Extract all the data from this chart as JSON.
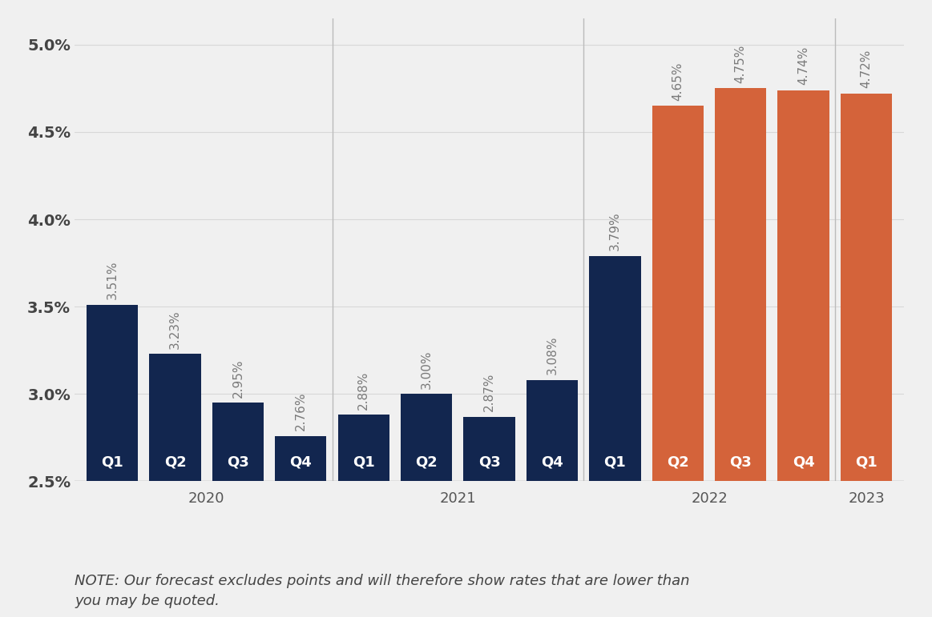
{
  "bars": [
    {
      "label": "Q1",
      "year": "2020",
      "value": 3.51,
      "color": "#12264F"
    },
    {
      "label": "Q2",
      "year": "2020",
      "value": 3.23,
      "color": "#12264F"
    },
    {
      "label": "Q3",
      "year": "2020",
      "value": 2.95,
      "color": "#12264F"
    },
    {
      "label": "Q4",
      "year": "2020",
      "value": 2.76,
      "color": "#12264F"
    },
    {
      "label": "Q1",
      "year": "2021",
      "value": 2.88,
      "color": "#12264F"
    },
    {
      "label": "Q2",
      "year": "2021",
      "value": 3.0,
      "color": "#12264F"
    },
    {
      "label": "Q3",
      "year": "2021",
      "value": 2.87,
      "color": "#12264F"
    },
    {
      "label": "Q4",
      "year": "2021",
      "value": 3.08,
      "color": "#12264F"
    },
    {
      "label": "Q1",
      "year": "2022",
      "value": 3.79,
      "color": "#12264F"
    },
    {
      "label": "Q2",
      "year": "2022",
      "value": 4.65,
      "color": "#D4633A"
    },
    {
      "label": "Q3",
      "year": "2022",
      "value": 4.75,
      "color": "#D4633A"
    },
    {
      "label": "Q4",
      "year": "2022",
      "value": 4.74,
      "color": "#D4633A"
    },
    {
      "label": "Q1",
      "year": "2023",
      "value": 4.72,
      "color": "#D4633A"
    }
  ],
  "ylim": [
    2.5,
    5.15
  ],
  "yticks": [
    2.5,
    3.0,
    3.5,
    4.0,
    4.5,
    5.0
  ],
  "ytick_labels": [
    "2.5%",
    "3.0%",
    "3.5%",
    "4.0%",
    "4.5%",
    "5.0%"
  ],
  "note": "NOTE: Our forecast excludes points and will therefore show rates that are lower than\nyou may be quoted.",
  "background_color": "#f0f0f0",
  "bar_width": 0.82,
  "val_label_fontsize": 11,
  "q_label_fontsize": 13,
  "year_label_fontsize": 13,
  "ytick_fontsize": 14,
  "note_fontsize": 13,
  "val_label_color": "#7a7a7a",
  "q_label_color": "#ffffff",
  "year_label_color": "#555555",
  "separator_color": "#bbbbbb",
  "grid_color": "#d8d8d8"
}
